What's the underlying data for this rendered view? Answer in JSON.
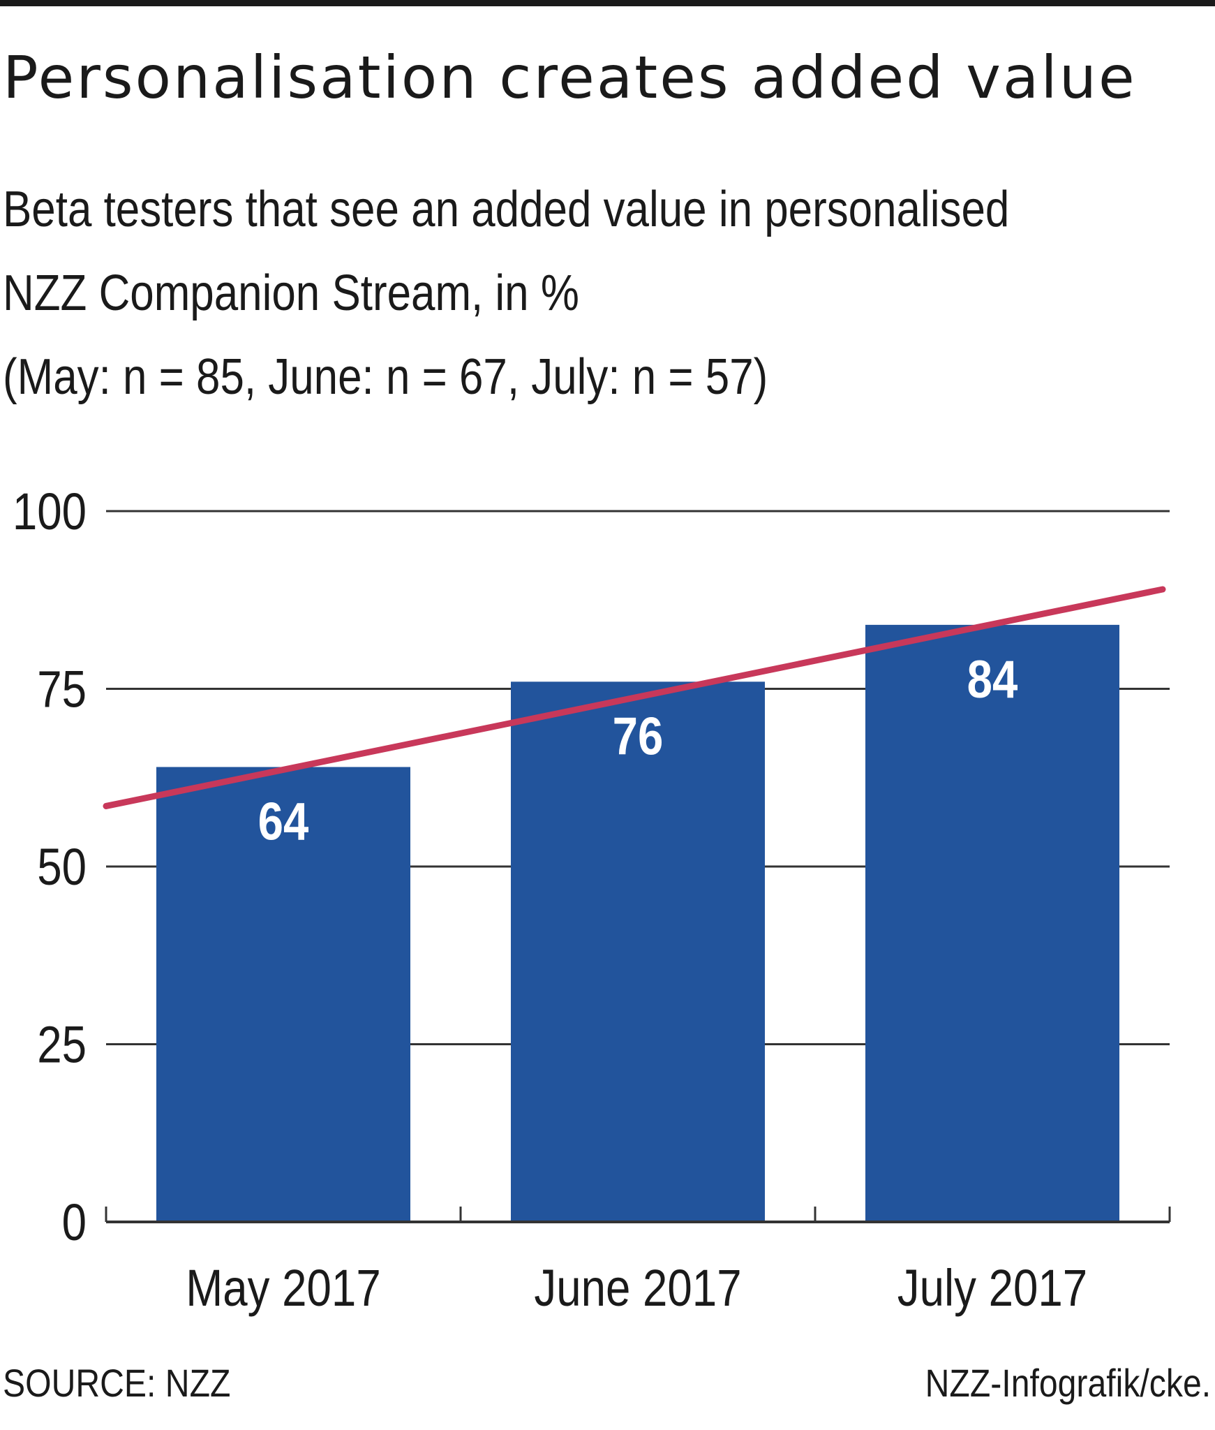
{
  "chart_data": {
    "type": "bar",
    "title": "Personalisation creates added value",
    "subtitle_lines": [
      "Beta testers that see an added value in personalised",
      "NZZ Companion Stream, in %",
      "(May: n = 85, June: n = 67, July: n = 57)"
    ],
    "categories": [
      "May 2017",
      "June 2017",
      "July 2017"
    ],
    "values": [
      64,
      76,
      84
    ],
    "data_labels": [
      "64",
      "76",
      "84"
    ],
    "yticks": [
      "0",
      "25",
      "50",
      "75",
      "100"
    ],
    "ylim": [
      0,
      100
    ],
    "grid": true,
    "trend_line": {
      "start": 58.5,
      "end": 89
    },
    "colors": {
      "bar": "#22549c",
      "trend": "#c8385a",
      "grid": "#333333",
      "text": "#1a1a1a"
    }
  },
  "footer": {
    "source": "SOURCE: NZZ",
    "credit": "NZZ-Infografik/cke."
  }
}
